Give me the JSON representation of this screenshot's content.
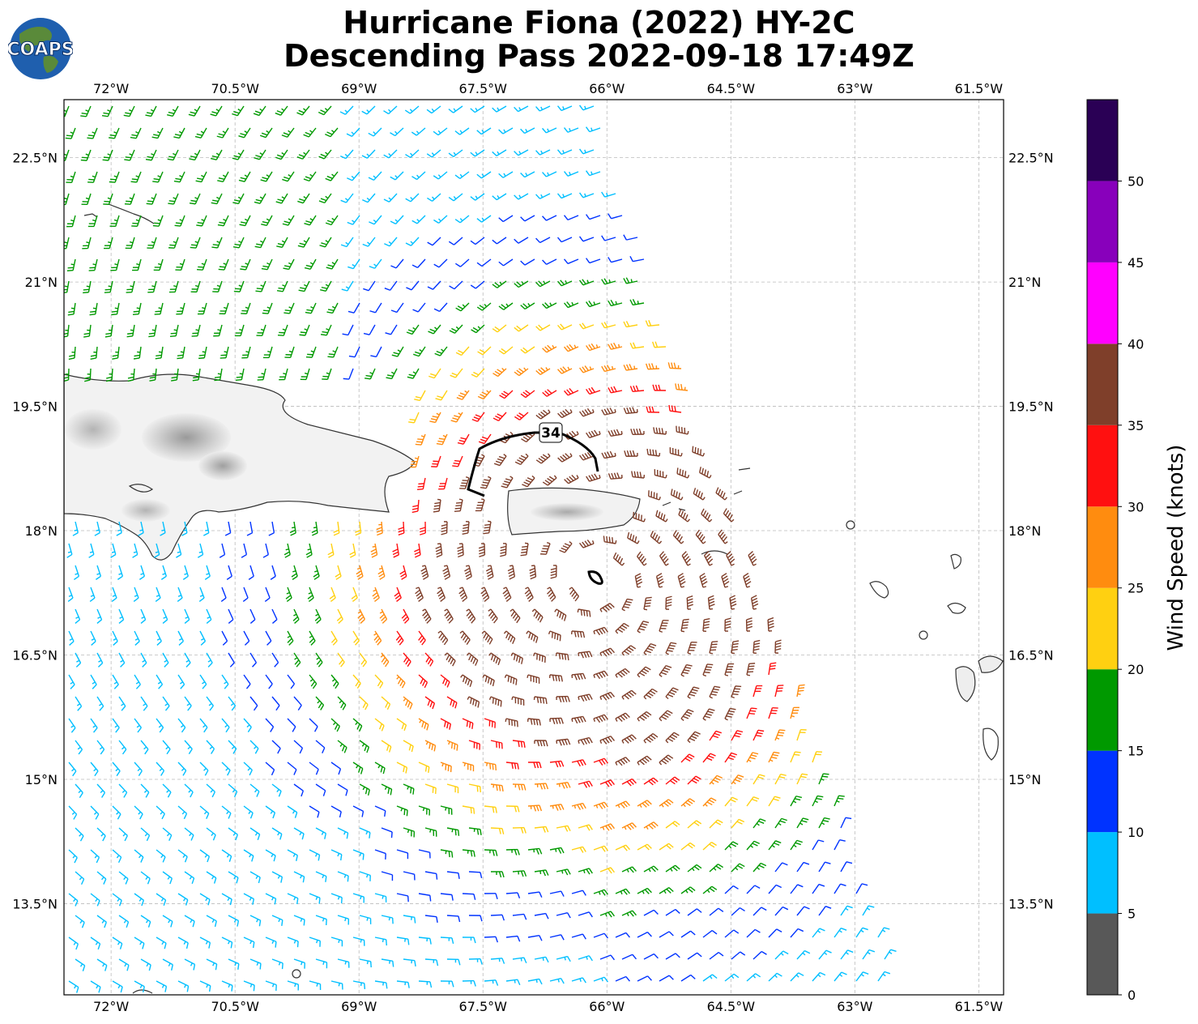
{
  "header": {
    "title_line1": "Hurricane Fiona (2022) HY-2C",
    "title_line2": "Descending Pass 2022-09-18 17:49Z",
    "logo_text": "COAPS"
  },
  "map": {
    "lon_labels": [
      "72°W",
      "70.5°W",
      "69°W",
      "67.5°W",
      "66°W",
      "64.5°W",
      "63°W",
      "61.5°W"
    ],
    "lat_labels": [
      "22.5°N",
      "21°N",
      "19.5°N",
      "18°N",
      "16.5°N",
      "15°N",
      "13.5°N"
    ],
    "lon_extent": [
      -72.57,
      -61.2
    ],
    "lat_extent": [
      12.4,
      23.2
    ],
    "contour_label": "34",
    "storm_center": {
      "lon": -66.15,
      "lat": 17.4
    }
  },
  "colorbar": {
    "label": "Wind Speed (knots)",
    "ticks": [
      "0",
      "5",
      "10",
      "15",
      "20",
      "25",
      "30",
      "35",
      "40",
      "45",
      "50"
    ],
    "bins": [
      {
        "min": 0,
        "max": 5,
        "color": "#585858"
      },
      {
        "min": 5,
        "max": 10,
        "color": "#00bfff"
      },
      {
        "min": 10,
        "max": 15,
        "color": "#0033ff"
      },
      {
        "min": 15,
        "max": 20,
        "color": "#009900"
      },
      {
        "min": 20,
        "max": 25,
        "color": "#ffd011"
      },
      {
        "min": 25,
        "max": 30,
        "color": "#ff8c0f"
      },
      {
        "min": 30,
        "max": 35,
        "color": "#ff1010"
      },
      {
        "min": 35,
        "max": 40,
        "color": "#7f3f2a"
      },
      {
        "min": 40,
        "max": 45,
        "color": "#ff00ff"
      },
      {
        "min": 45,
        "max": 50,
        "color": "#8800bb"
      },
      {
        "min": 50,
        "max": 55,
        "color": "#2a0055"
      }
    ]
  }
}
